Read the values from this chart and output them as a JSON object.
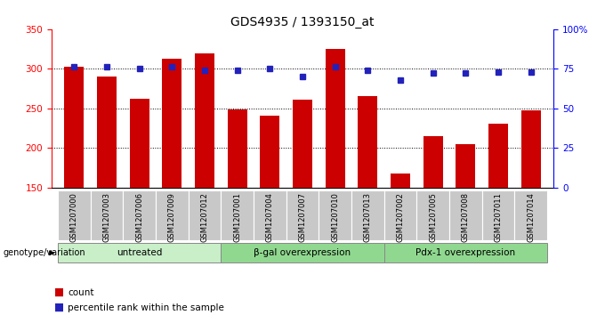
{
  "title": "GDS4935 / 1393150_at",
  "samples": [
    "GSM1207000",
    "GSM1207003",
    "GSM1207006",
    "GSM1207009",
    "GSM1207012",
    "GSM1207001",
    "GSM1207004",
    "GSM1207007",
    "GSM1207010",
    "GSM1207013",
    "GSM1207002",
    "GSM1207005",
    "GSM1207008",
    "GSM1207011",
    "GSM1207014"
  ],
  "counts": [
    302,
    290,
    262,
    313,
    319,
    248,
    240,
    261,
    325,
    265,
    168,
    215,
    205,
    231,
    247
  ],
  "percentiles": [
    76,
    76,
    75,
    76,
    74,
    74,
    75,
    70,
    76,
    74,
    68,
    72,
    72,
    73,
    73
  ],
  "groups": [
    {
      "label": "untreated",
      "start": 0,
      "end": 5
    },
    {
      "label": "β-gal overexpression",
      "start": 5,
      "end": 10
    },
    {
      "label": "Pdx-1 overexpression",
      "start": 10,
      "end": 15
    }
  ],
  "ylim_left": [
    150,
    350
  ],
  "ylim_right": [
    0,
    100
  ],
  "yticks_left": [
    150,
    200,
    250,
    300,
    350
  ],
  "yticks_right": [
    0,
    25,
    50,
    75,
    100
  ],
  "bar_color": "#cc0000",
  "dot_color": "#2222bb",
  "label_count": "count",
  "label_percentile": "percentile rank within the sample",
  "genotype_label": "genotype/variation",
  "group_color_untreated": "#c8efc8",
  "group_color_other": "#90d890"
}
